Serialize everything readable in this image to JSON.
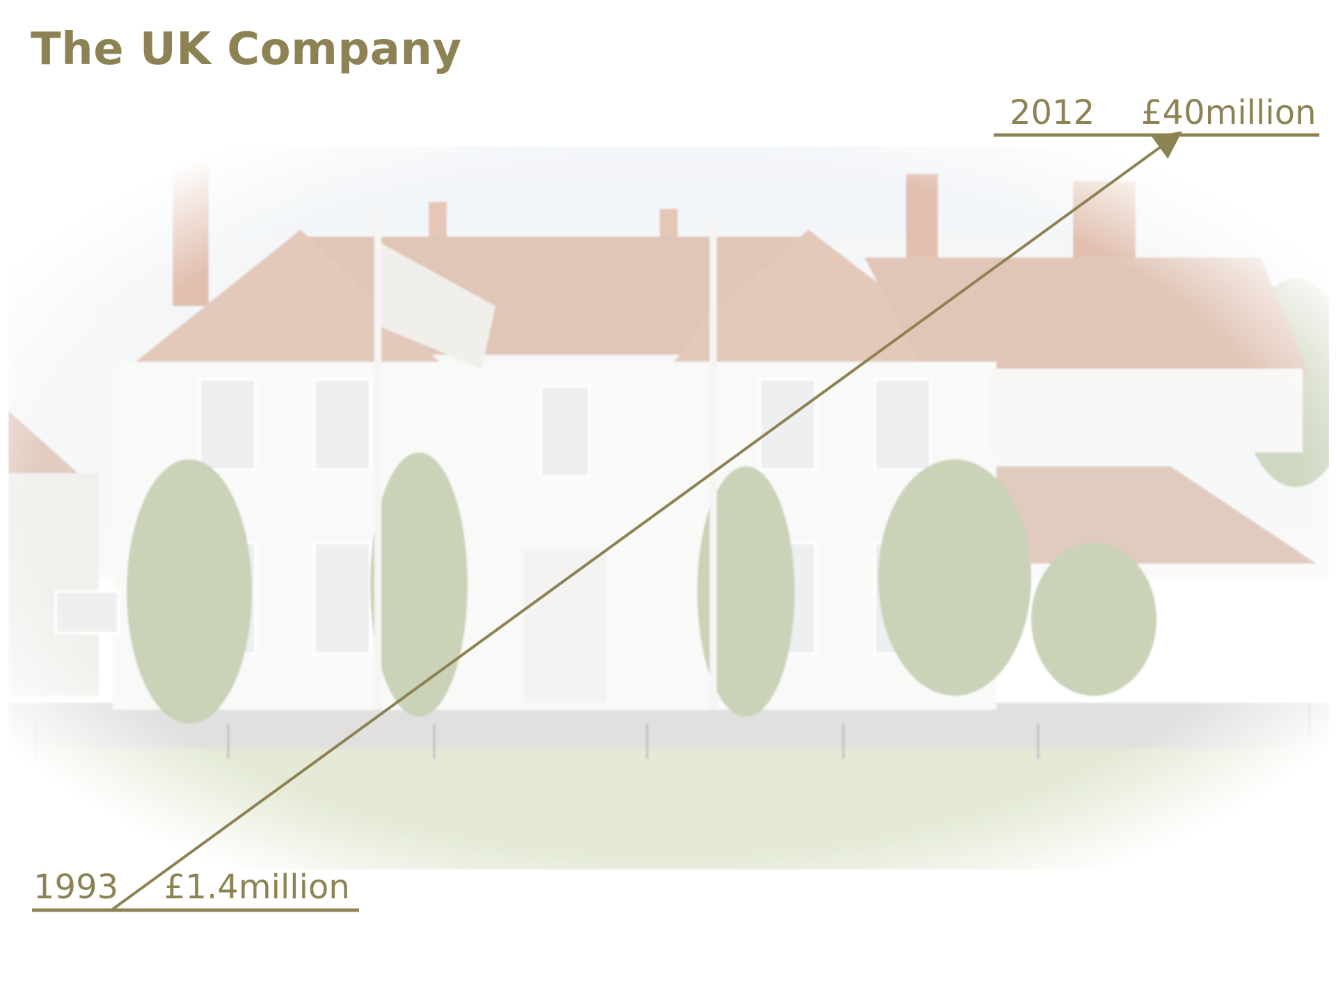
{
  "slide": {
    "title": "The UK Company"
  },
  "milestones": {
    "end": {
      "year": "2012",
      "value": "£40million"
    },
    "start": {
      "year": "1993",
      "value": "£1.4million"
    }
  },
  "colors": {
    "accent": "#8c8253",
    "photo_wash": "#f3f1ea"
  },
  "photo": {
    "subject": "country-house-building"
  }
}
